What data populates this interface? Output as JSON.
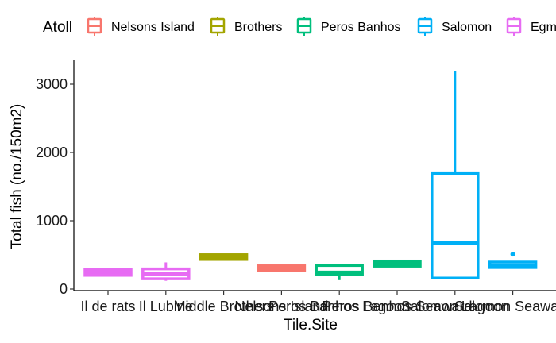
{
  "chart_data": {
    "type": "boxplot",
    "xlabel": "Tile.Site",
    "ylabel": "Total fish (no./150m2)",
    "ylim": [
      -50,
      3200
    ],
    "yticks": [
      0,
      1000,
      2000,
      3000
    ],
    "grid": false,
    "legend": {
      "title": "Atoll",
      "placement": "top",
      "entries": [
        {
          "name": "Nelsons Island",
          "color": "#F8766D"
        },
        {
          "name": "Brothers",
          "color": "#A3A500"
        },
        {
          "name": "Peros Banhos",
          "color": "#00BF7D"
        },
        {
          "name": "Salomon",
          "color": "#00B0F6"
        },
        {
          "name": "Egm",
          "color": "#E76BF3"
        }
      ]
    },
    "categories": [
      "Il de rats",
      "Il Lubine",
      "Middle Brothers",
      "Nelsons Island",
      "Peros Banhos Lagoon",
      "Peros Banhos Seaward",
      "Salomon Lagoon",
      "Salomon Seaward"
    ],
    "tick_labels_displayed": [
      "Il de rats",
      "Il Lubine",
      "Middle Brothers",
      "Nelsons Island",
      "Peros Banhos Lagoon",
      "Peros Banhos Seaward",
      "Salomon Lagoon",
      "Salomon Seaward"
    ],
    "boxes": [
      {
        "category": "Il de rats",
        "atoll": "Egm",
        "min": 190,
        "q1": 200,
        "median": 245,
        "q3": 285,
        "max": 300,
        "outliers": []
      },
      {
        "category": "Il Lubine",
        "atoll": "Egm",
        "min": 120,
        "q1": 150,
        "median": 215,
        "q3": 295,
        "max": 390,
        "outliers": []
      },
      {
        "category": "Middle Brothers",
        "atoll": "Brothers",
        "min": 440,
        "q1": 445,
        "median": 465,
        "q3": 490,
        "max": 495,
        "outliers": []
      },
      {
        "category": "Nelsons Island",
        "atoll": "Nelsons Island",
        "min": 270,
        "q1": 275,
        "median": 305,
        "q3": 335,
        "max": 340,
        "outliers": []
      },
      {
        "category": "Peros Banhos Lagoon",
        "atoll": "Peros Banhos",
        "min": 130,
        "q1": 210,
        "median": 240,
        "q3": 345,
        "max": 360,
        "outliers": []
      },
      {
        "category": "Peros Banhos Seaward",
        "atoll": "Peros Banhos",
        "min": 330,
        "q1": 335,
        "median": 375,
        "q3": 410,
        "max": 415,
        "outliers": []
      },
      {
        "category": "Salomon Lagoon",
        "atoll": "Salomon",
        "min": 150,
        "q1": 160,
        "median": 680,
        "q3": 1690,
        "max": 3190,
        "outliers": []
      },
      {
        "category": "Salomon Seaward",
        "atoll": "Salomon",
        "min": 310,
        "q1": 315,
        "median": 345,
        "q3": 395,
        "max": 400,
        "outliers": [
          510
        ]
      }
    ]
  }
}
